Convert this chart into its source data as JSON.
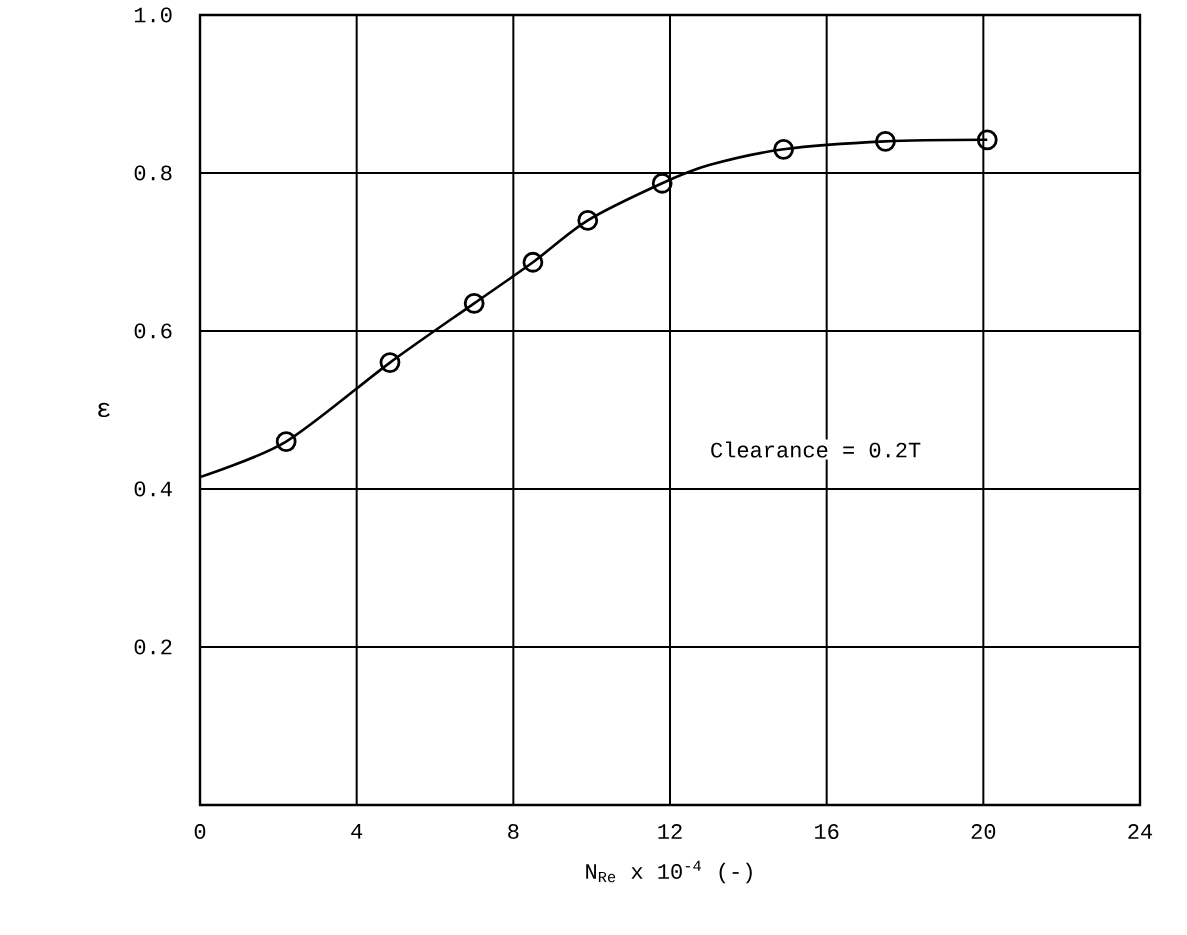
{
  "chart_data": {
    "type": "scatter",
    "xlabel": "N$_{Re}$ x 10$^{-4}$ (-)",
    "ylabel": "ε",
    "series": [
      {
        "color": "#000000",
        "marker": "circle",
        "x": [
          2.2,
          4.85,
          7.0,
          8.5,
          9.9,
          11.8,
          14.9,
          17.5,
          20.1
        ],
        "values": [
          0.46,
          0.56,
          0.635,
          0.687,
          0.74,
          0.787,
          0.83,
          0.84,
          0.842
        ]
      },
      {
        "type": "line",
        "color": "#000000",
        "line_style": "solid",
        "x": [
          0,
          2.2,
          4.85,
          7.0,
          8.5,
          9.9,
          11.8,
          13.0,
          14.9,
          17.5,
          20.1
        ],
        "values": [
          0.415,
          0.46,
          0.56,
          0.635,
          0.687,
          0.74,
          0.787,
          0.81,
          0.83,
          0.84,
          0.842
        ]
      }
    ],
    "xlim": [
      0,
      24
    ],
    "ylim": [
      0,
      1
    ],
    "xticks": [
      0,
      4,
      8,
      12,
      16,
      20,
      24
    ],
    "yticks": [
      0.2,
      0.4,
      0.6,
      0.8,
      {
        "value": 1,
        "label": "1.0"
      }
    ],
    "grid": true,
    "annotations": [
      "Clearance = 0.2T"
    ]
  }
}
